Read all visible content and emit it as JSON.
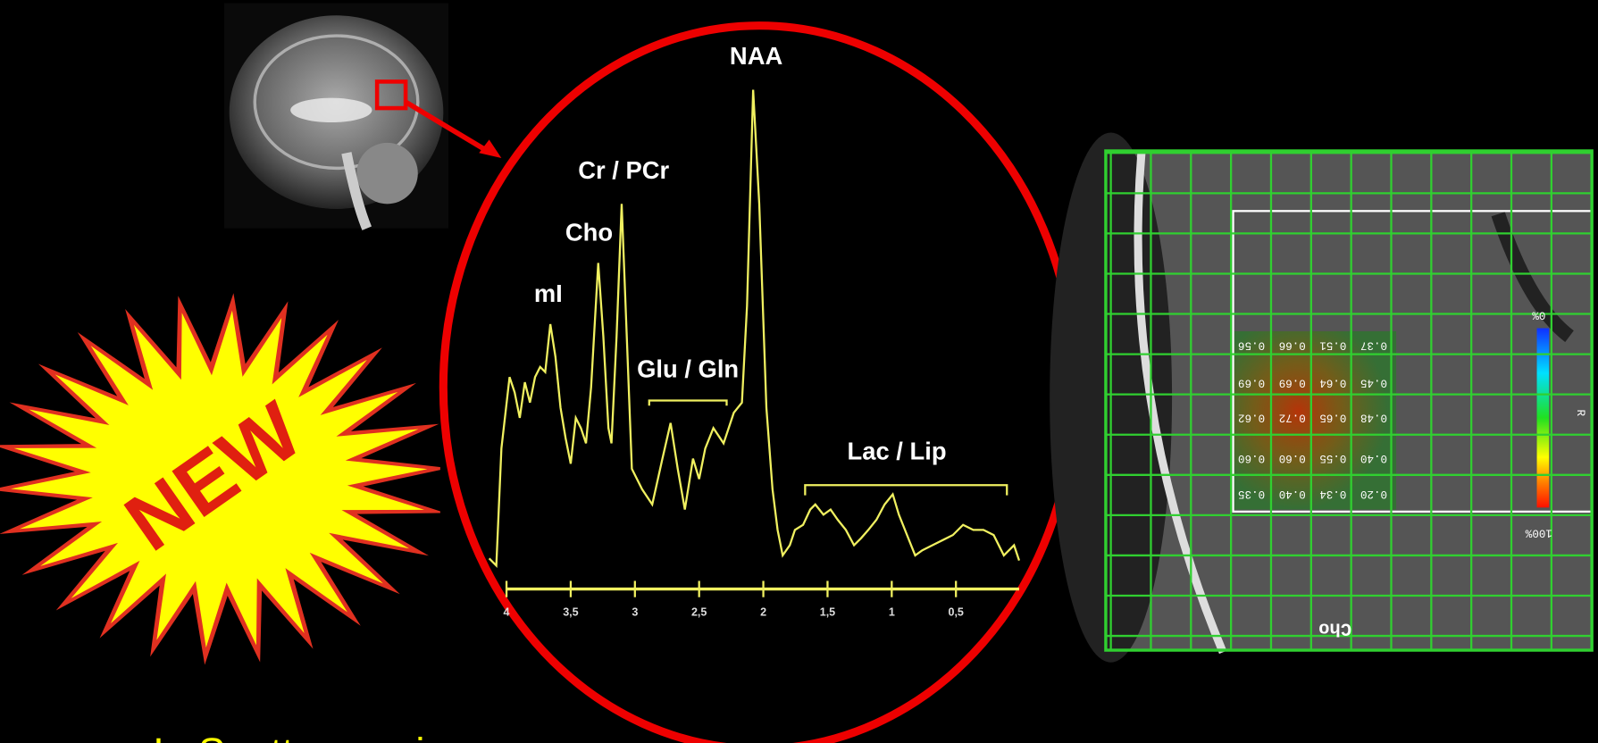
{
  "badge": "NEW",
  "spectrum": {
    "peaks": [
      "NAA",
      "Cr / PCr",
      "Cho",
      "mI",
      "Glu / Gln",
      "Lac / Lip"
    ],
    "ticks": [
      "4",
      "3,5",
      "3",
      "2,5",
      "2",
      "1,5",
      "1",
      "0,5"
    ]
  },
  "map": {
    "metabolite": "Cho",
    "scale_top": "0%",
    "scale_bottom": "100%",
    "side": "R",
    "cells": [
      [
        "0.56",
        "0.66",
        "0.51",
        "0.37"
      ],
      [
        "0.69",
        "0.69",
        "0.64",
        "0.45"
      ],
      [
        "0.62",
        "0.72",
        "0.65",
        "0.48"
      ],
      [
        "0.60",
        "0.60",
        "0.55",
        "0.40"
      ],
      [
        "0.35",
        "0.40",
        "0.34",
        "0.20"
      ]
    ]
  },
  "caption": "In Spettroscopia"
}
